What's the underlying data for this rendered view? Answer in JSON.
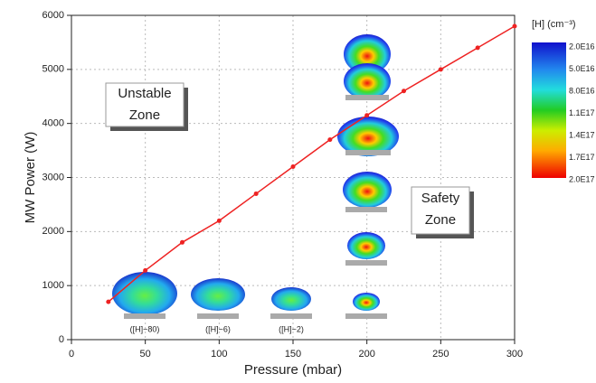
{
  "chart_data": {
    "type": "line",
    "xlabel": "Pressure (mbar)",
    "ylabel": "MW Power (W)",
    "x": [
      25,
      50,
      75,
      100,
      125,
      150,
      175,
      200,
      225,
      250,
      275,
      300
    ],
    "series": [
      {
        "color": "#ee2222",
        "values": [
          700,
          1280,
          1800,
          2200,
          2700,
          3200,
          3700,
          4150,
          4600,
          5000,
          5400,
          5800
        ]
      }
    ],
    "xlim": [
      0,
      300
    ],
    "xticks": [
      0,
      50,
      100,
      150,
      200,
      250,
      300
    ],
    "ylim": [
      0,
      6000
    ],
    "yticks": [
      0,
      1000,
      2000,
      3000,
      4000,
      5000,
      6000
    ],
    "grid": true,
    "zones": [
      {
        "lines": [
          "Unstable",
          "Zone"
        ],
        "color": "#ee2222"
      },
      {
        "lines": [
          "Safety",
          "Zone"
        ],
        "color": "#22aa22"
      }
    ],
    "blob_labels": [
      "([H]~80)",
      "([H]~6)",
      "([H]~2)"
    ],
    "colorbar": {
      "title": "[H] (cm⁻³)",
      "labels": [
        "2.0E16",
        "5.0E16",
        "8.0E16",
        "1.1E17",
        "1.4E17",
        "1.7E17",
        "2.0E17"
      ]
    }
  }
}
